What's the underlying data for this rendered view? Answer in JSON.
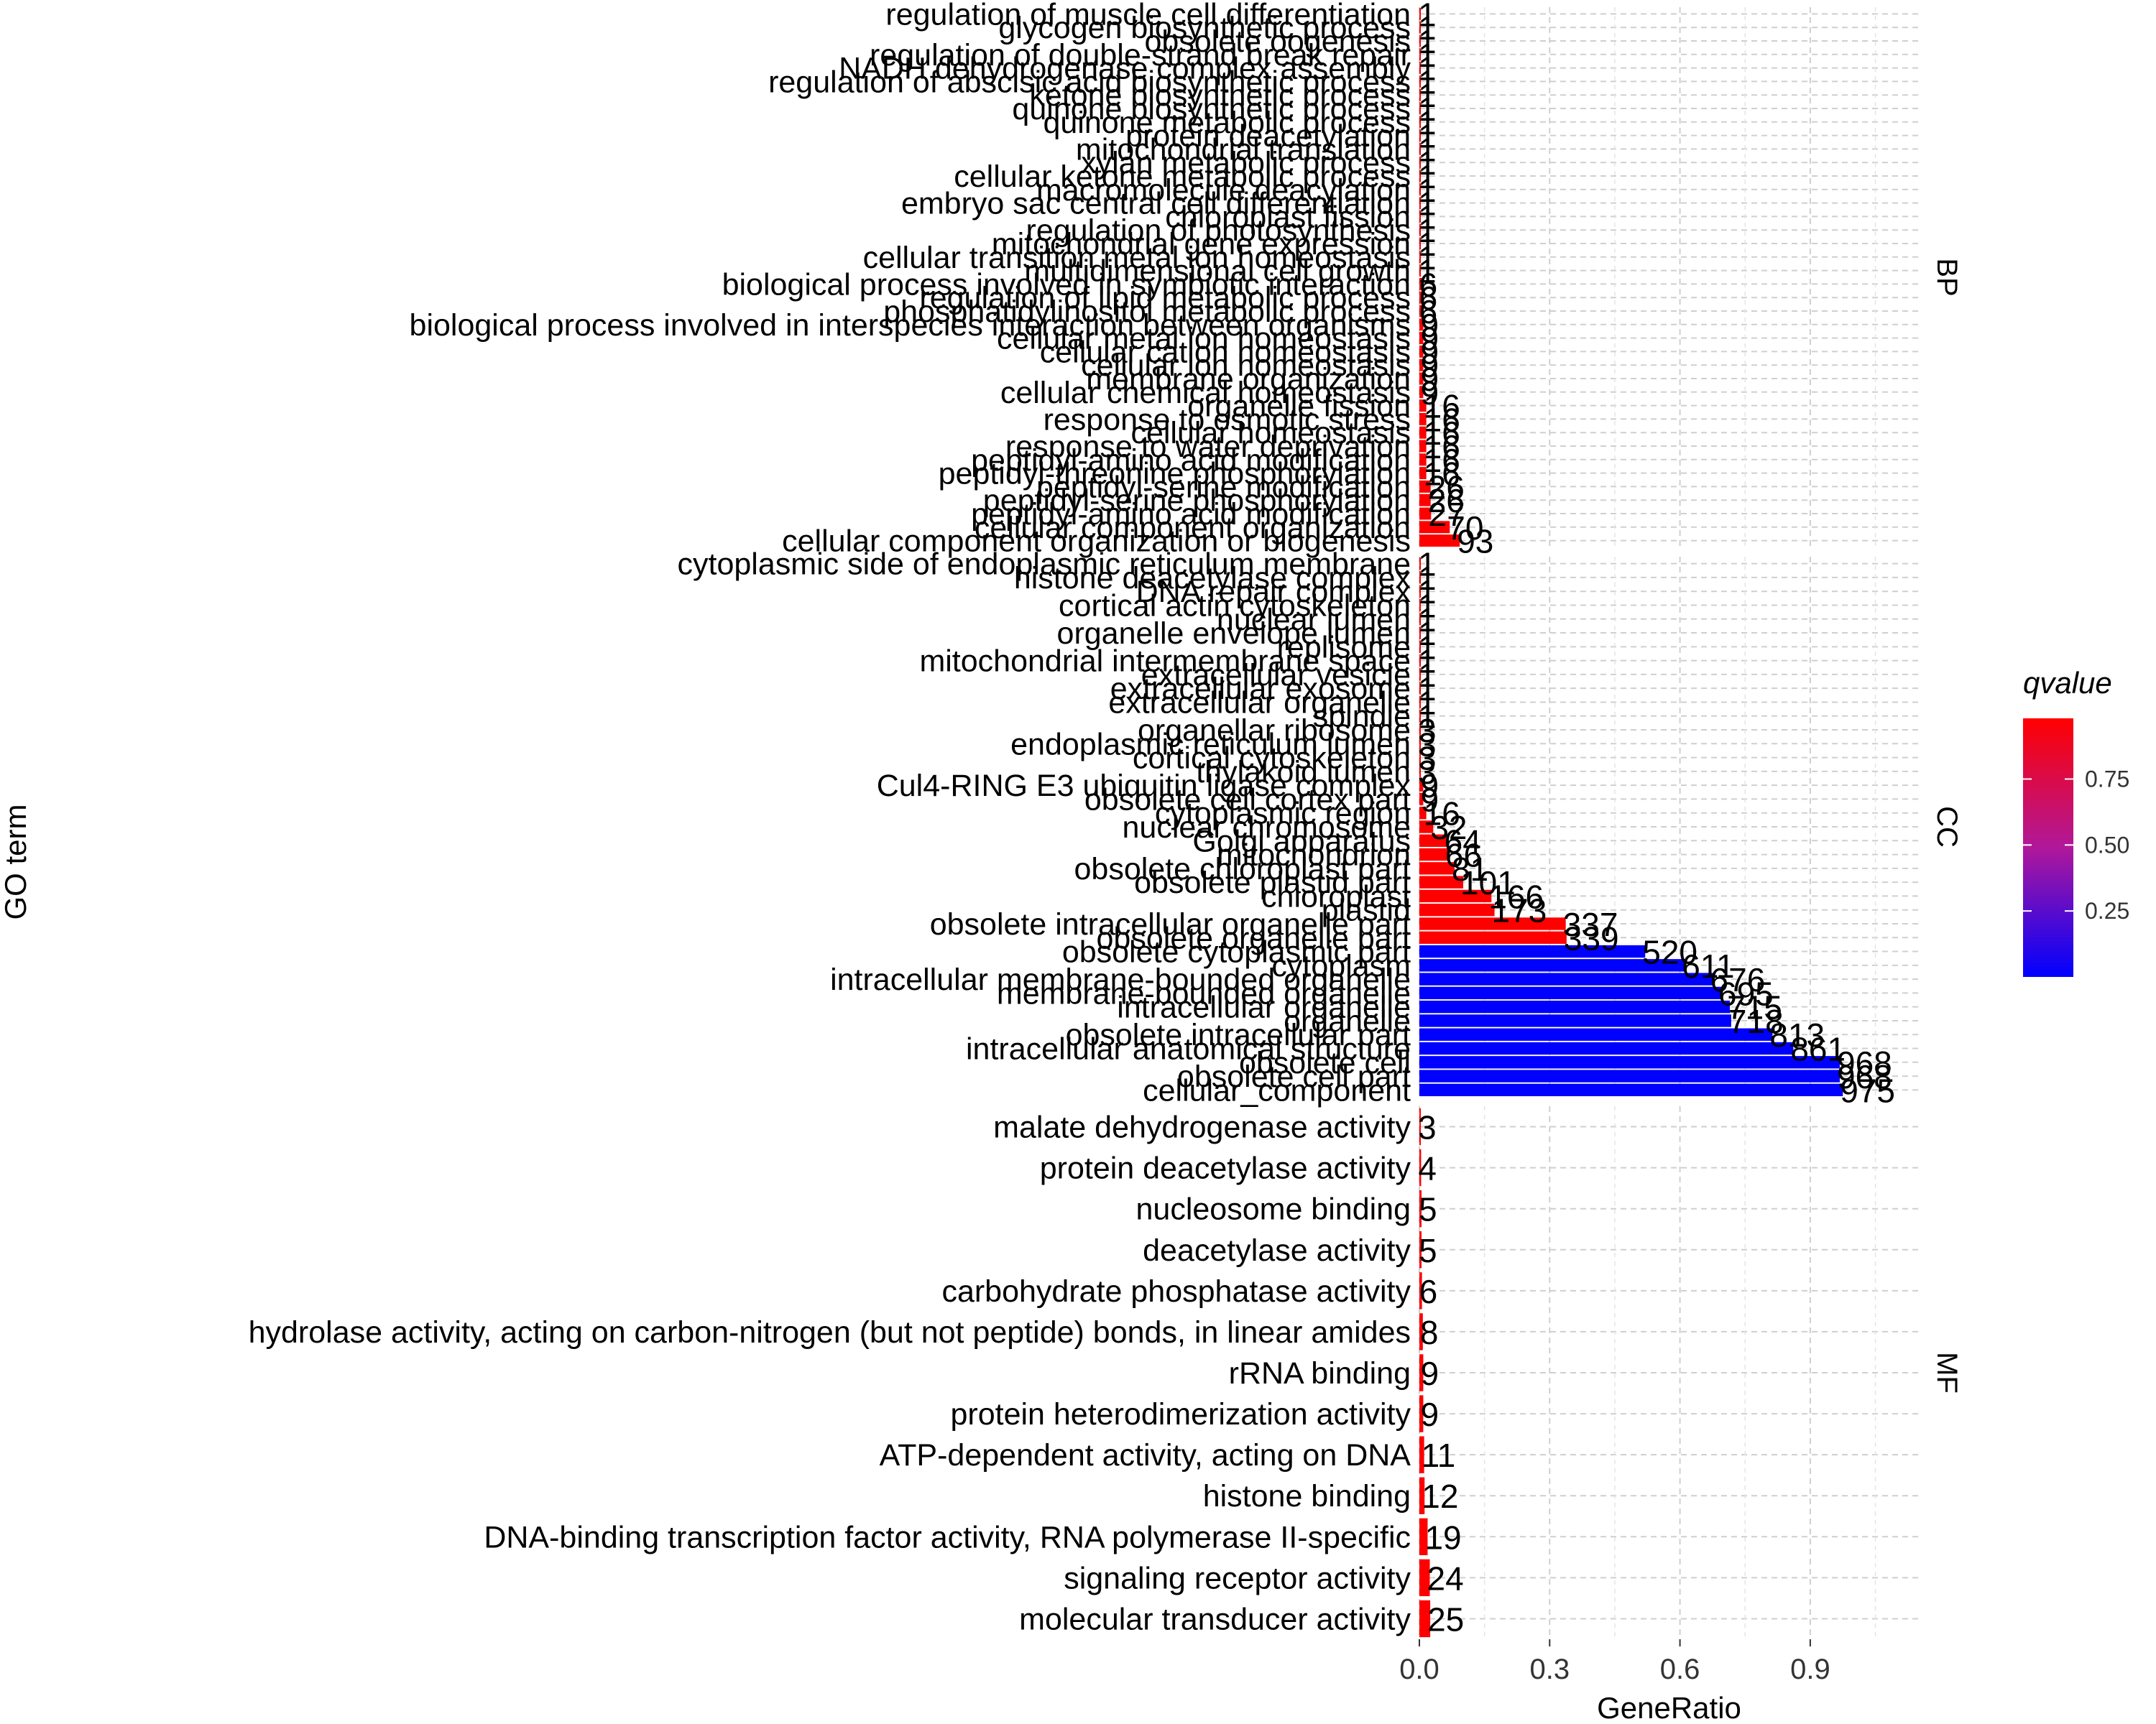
{
  "chart_data": {
    "type": "bar",
    "orientation": "horizontal",
    "xlabel": "GeneRatio",
    "ylabel": "GO term",
    "xlim": [
      0,
      1.15
    ],
    "xticks": [
      0.0,
      0.3,
      0.6,
      0.9
    ],
    "xtick_labels": [
      "0.0",
      "0.3",
      "0.6",
      "0.9"
    ],
    "grid": true,
    "legend": {
      "title": "qvalue",
      "placement": "right",
      "type": "colorbar",
      "low_color": "#0000ff",
      "high_color": "#ff0000",
      "range": [
        0.0,
        0.98
      ],
      "ticks": [
        0.25,
        0.5,
        0.75
      ],
      "tick_labels": [
        "0.25",
        "0.50",
        "0.75"
      ]
    },
    "facets": [
      {
        "name": "BP",
        "terms": [
          {
            "term": "regulation of muscle cell differentiation",
            "count": "1",
            "ratio": 0.001,
            "qvalue": 0.98
          },
          {
            "term": "glycogen biosynthetic process",
            "count": "1",
            "ratio": 0.001,
            "qvalue": 0.98
          },
          {
            "term": "obsolete oogenesis",
            "count": "1",
            "ratio": 0.001,
            "qvalue": 0.98
          },
          {
            "term": "regulation of double-strand break repair",
            "count": "1",
            "ratio": 0.001,
            "qvalue": 0.98
          },
          {
            "term": "NADH dehydrogenase complex assembly",
            "count": "1",
            "ratio": 0.001,
            "qvalue": 0.98
          },
          {
            "term": "regulation of abscisic acid biosynthetic process",
            "count": "1",
            "ratio": 0.001,
            "qvalue": 0.98
          },
          {
            "term": "ketone biosynthetic process",
            "count": "1",
            "ratio": 0.001,
            "qvalue": 0.98
          },
          {
            "term": "quinone biosynthetic process",
            "count": "1",
            "ratio": 0.001,
            "qvalue": 0.98
          },
          {
            "term": "quinone metabolic process",
            "count": "1",
            "ratio": 0.001,
            "qvalue": 0.98
          },
          {
            "term": "protein deacetylation",
            "count": "1",
            "ratio": 0.001,
            "qvalue": 0.98
          },
          {
            "term": "mitochondrial translation",
            "count": "1",
            "ratio": 0.001,
            "qvalue": 0.98
          },
          {
            "term": "xylan metabolic process",
            "count": "1",
            "ratio": 0.001,
            "qvalue": 0.98
          },
          {
            "term": "cellular ketone metabolic process",
            "count": "1",
            "ratio": 0.001,
            "qvalue": 0.98
          },
          {
            "term": "macromolecule deacylation",
            "count": "1",
            "ratio": 0.001,
            "qvalue": 0.98
          },
          {
            "term": "embryo sac central cell differentiation",
            "count": "1",
            "ratio": 0.001,
            "qvalue": 0.98
          },
          {
            "term": "chloroplast fission",
            "count": "1",
            "ratio": 0.001,
            "qvalue": 0.98
          },
          {
            "term": "regulation of photosynthesis",
            "count": "1",
            "ratio": 0.001,
            "qvalue": 0.98
          },
          {
            "term": "mitochondrial gene expression",
            "count": "1",
            "ratio": 0.001,
            "qvalue": 0.98
          },
          {
            "term": "cellular transition metal ion homeostasis",
            "count": "1",
            "ratio": 0.001,
            "qvalue": 0.98
          },
          {
            "term": "multidimensional cell growth",
            "count": "1",
            "ratio": 0.001,
            "qvalue": 0.98
          },
          {
            "term": "biological process involved in symbiotic interaction",
            "count": "6",
            "ratio": 0.006,
            "qvalue": 0.98
          },
          {
            "term": "regulation of lipid metabolic process",
            "count": "6",
            "ratio": 0.006,
            "qvalue": 0.98
          },
          {
            "term": "phosphatidylinositol metabolic process",
            "count": "6",
            "ratio": 0.006,
            "qvalue": 0.98
          },
          {
            "term": "biological process involved in interspecies interaction between organisms",
            "count": "9",
            "ratio": 0.009,
            "qvalue": 0.98
          },
          {
            "term": "cellular metal ion homeostasis",
            "count": "9",
            "ratio": 0.009,
            "qvalue": 0.98
          },
          {
            "term": "cellular cation homeostasis",
            "count": "9",
            "ratio": 0.009,
            "qvalue": 0.98
          },
          {
            "term": "cellular ion homeostasis",
            "count": "9",
            "ratio": 0.009,
            "qvalue": 0.98
          },
          {
            "term": "membrane organization",
            "count": "9",
            "ratio": 0.009,
            "qvalue": 0.98
          },
          {
            "term": "cellular chemical homeostasis",
            "count": "9",
            "ratio": 0.009,
            "qvalue": 0.98
          },
          {
            "term": "organelle fission",
            "count": "16",
            "ratio": 0.016,
            "qvalue": 0.98
          },
          {
            "term": "response to osmotic stress",
            "count": "16",
            "ratio": 0.016,
            "qvalue": 0.98
          },
          {
            "term": "cellular homeostasis",
            "count": "16",
            "ratio": 0.016,
            "qvalue": 0.98
          },
          {
            "term": "response to water deprivation",
            "count": "16",
            "ratio": 0.016,
            "qvalue": 0.98
          },
          {
            "term": "peptidyl-amino acid modification",
            "count": "16",
            "ratio": 0.016,
            "qvalue": 0.98
          },
          {
            "term": "peptidyl-threonine phosphorylation",
            "count": "16",
            "ratio": 0.016,
            "qvalue": 0.98
          },
          {
            "term": "peptidyl-serine modification",
            "count": "26",
            "ratio": 0.026,
            "qvalue": 0.98
          },
          {
            "term": "peptidyl-serine phosphorylation",
            "count": "26",
            "ratio": 0.026,
            "qvalue": 0.98
          },
          {
            "term": "peptidyl-amino acid modification",
            "count": "27",
            "ratio": 0.027,
            "qvalue": 0.98
          },
          {
            "term": "cellular component organization",
            "count": "70",
            "ratio": 0.07,
            "qvalue": 0.98
          },
          {
            "term": "cellular component organization or biogenesis",
            "count": "93",
            "ratio": 0.093,
            "qvalue": 0.98
          }
        ]
      },
      {
        "name": "CC",
        "terms": [
          {
            "term": "cytoplasmic side of endoplasmic reticulum membrane",
            "count": "1",
            "ratio": 0.001,
            "qvalue": 0.98
          },
          {
            "term": "histone deacetylase complex",
            "count": "1",
            "ratio": 0.001,
            "qvalue": 0.98
          },
          {
            "term": "DNA repair complex",
            "count": "1",
            "ratio": 0.001,
            "qvalue": 0.98
          },
          {
            "term": "cortical actin cytoskeleton",
            "count": "1",
            "ratio": 0.001,
            "qvalue": 0.98
          },
          {
            "term": "nuclear lumen",
            "count": "1",
            "ratio": 0.001,
            "qvalue": 0.98
          },
          {
            "term": "organelle envelope lumen",
            "count": "1",
            "ratio": 0.001,
            "qvalue": 0.98
          },
          {
            "term": "replisome",
            "count": "1",
            "ratio": 0.001,
            "qvalue": 0.98
          },
          {
            "term": "mitochondrial intermembrane space",
            "count": "1",
            "ratio": 0.001,
            "qvalue": 0.98
          },
          {
            "term": "extracellular vesicle",
            "count": "1",
            "ratio": 0.001,
            "qvalue": 0.98
          },
          {
            "term": "extracellular exosome",
            "count": "1",
            "ratio": 0.001,
            "qvalue": 0.98
          },
          {
            "term": "extracellular organelle",
            "count": "1",
            "ratio": 0.001,
            "qvalue": 0.98
          },
          {
            "term": "spindle",
            "count": "1",
            "ratio": 0.001,
            "qvalue": 0.98
          },
          {
            "term": "organellar ribosome",
            "count": "3",
            "ratio": 0.003,
            "qvalue": 0.98
          },
          {
            "term": "endoplasmic reticulum lumen",
            "count": "3",
            "ratio": 0.003,
            "qvalue": 0.98
          },
          {
            "term": "cortical cytoskeleton",
            "count": "3",
            "ratio": 0.003,
            "qvalue": 0.98
          },
          {
            "term": "thylakoid lumen",
            "count": "3",
            "ratio": 0.003,
            "qvalue": 0.98
          },
          {
            "term": "Cul4-RING E3 ubiquitin ligase complex",
            "count": "9",
            "ratio": 0.009,
            "qvalue": 0.98
          },
          {
            "term": "obsolete cell cortex part",
            "count": "9",
            "ratio": 0.009,
            "qvalue": 0.98
          },
          {
            "term": "cytoplasmic region",
            "count": "16",
            "ratio": 0.016,
            "qvalue": 0.98
          },
          {
            "term": "nuclear chromosome",
            "count": "32",
            "ratio": 0.032,
            "qvalue": 0.98
          },
          {
            "term": "Golgi apparatus",
            "count": "64",
            "ratio": 0.064,
            "qvalue": 0.98
          },
          {
            "term": "mitochondrion",
            "count": "66",
            "ratio": 0.066,
            "qvalue": 0.98
          },
          {
            "term": "obsolete chloroplast part",
            "count": "81",
            "ratio": 0.081,
            "qvalue": 0.98
          },
          {
            "term": "obsolete plastid part",
            "count": "101",
            "ratio": 0.101,
            "qvalue": 0.98
          },
          {
            "term": "chloroplast",
            "count": "166",
            "ratio": 0.166,
            "qvalue": 0.98
          },
          {
            "term": "plastid",
            "count": "173",
            "ratio": 0.173,
            "qvalue": 0.98
          },
          {
            "term": "obsolete intracellular organelle part",
            "count": "337",
            "ratio": 0.337,
            "qvalue": 0.98
          },
          {
            "term": "obsolete organelle part",
            "count": "339",
            "ratio": 0.339,
            "qvalue": 0.98
          },
          {
            "term": "obsolete cytoplasmic part",
            "count": "520",
            "ratio": 0.52,
            "qvalue": 0.0
          },
          {
            "term": "cytoplasm",
            "count": "611",
            "ratio": 0.611,
            "qvalue": 0.0
          },
          {
            "term": "intracellular membrane-bounded organelle",
            "count": "676",
            "ratio": 0.676,
            "qvalue": 0.0
          },
          {
            "term": "membrane-bounded organelle",
            "count": "695",
            "ratio": 0.695,
            "qvalue": 0.0
          },
          {
            "term": "intracellular organelle",
            "count": "715",
            "ratio": 0.715,
            "qvalue": 0.0
          },
          {
            "term": "organelle",
            "count": "718",
            "ratio": 0.718,
            "qvalue": 0.0
          },
          {
            "term": "obsolete intracellular part",
            "count": "813",
            "ratio": 0.813,
            "qvalue": 0.0
          },
          {
            "term": "intracellular anatomical structure",
            "count": "861",
            "ratio": 0.861,
            "qvalue": 0.0
          },
          {
            "term": "obsolete cell",
            "count": "968",
            "ratio": 0.968,
            "qvalue": 0.0
          },
          {
            "term": "obsolete cell part",
            "count": "968",
            "ratio": 0.968,
            "qvalue": 0.0
          },
          {
            "term": "cellular_component",
            "count": "975",
            "ratio": 0.975,
            "qvalue": 0.0
          }
        ]
      },
      {
        "name": "MF",
        "terms": [
          {
            "term": "malate dehydrogenase activity",
            "count": "3",
            "ratio": 0.003,
            "qvalue": 0.98
          },
          {
            "term": "protein deacetylase activity",
            "count": "4",
            "ratio": 0.004,
            "qvalue": 0.98
          },
          {
            "term": "nucleosome binding",
            "count": "5",
            "ratio": 0.005,
            "qvalue": 0.98
          },
          {
            "term": "deacetylase activity",
            "count": "5",
            "ratio": 0.005,
            "qvalue": 0.98
          },
          {
            "term": "carbohydrate phosphatase activity",
            "count": "6",
            "ratio": 0.006,
            "qvalue": 0.98
          },
          {
            "term": "hydrolase activity, acting on carbon-nitrogen (but not peptide) bonds, in linear amides",
            "count": "8",
            "ratio": 0.008,
            "qvalue": 0.98
          },
          {
            "term": "rRNA binding",
            "count": "9",
            "ratio": 0.009,
            "qvalue": 0.98
          },
          {
            "term": "protein heterodimerization activity",
            "count": "9",
            "ratio": 0.009,
            "qvalue": 0.98
          },
          {
            "term": "ATP-dependent activity, acting on DNA",
            "count": "11",
            "ratio": 0.011,
            "qvalue": 0.98
          },
          {
            "term": "histone binding",
            "count": "12",
            "ratio": 0.012,
            "qvalue": 0.98
          },
          {
            "term": "DNA-binding transcription factor activity, RNA polymerase II-specific",
            "count": "19",
            "ratio": 0.019,
            "qvalue": 0.98
          },
          {
            "term": "signaling receptor activity",
            "count": "24",
            "ratio": 0.024,
            "qvalue": 0.98
          },
          {
            "term": "molecular transducer activity",
            "count": "25",
            "ratio": 0.025,
            "qvalue": 0.98
          }
        ]
      }
    ]
  }
}
